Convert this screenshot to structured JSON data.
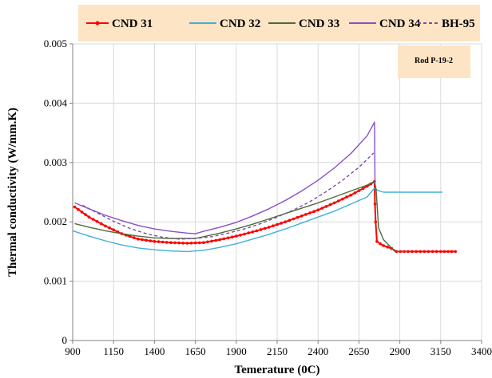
{
  "chart_data": {
    "type": "line",
    "xlabel": "Temerature (0C)",
    "ylabel": "Thermal conductivity (W/mm.K)",
    "xlim": [
      900,
      3400
    ],
    "ylim": [
      0,
      0.005
    ],
    "xticks": [
      "900",
      "1150",
      "1400",
      "1650",
      "1900",
      "2150",
      "2400",
      "2650",
      "2900",
      "3150",
      "3400"
    ],
    "yticks": [
      "0",
      "0.001",
      "0.002",
      "0.003",
      "0.004",
      "0.005"
    ],
    "grid": true,
    "legend_position": "top",
    "annotation": "Rod P-19-2",
    "colors": {
      "legend_bg": "#fce4c4",
      "annotation_bg": "#fce4c4",
      "cnd31": "#ff0000",
      "cnd32": "#3eb0dc",
      "cnd33": "#4e6b3a",
      "cnd34": "#8a4fc6",
      "bh95": "#7b4fa0",
      "grid": "#d9d9d9"
    },
    "series": [
      {
        "name": "CND 31",
        "color": "#ff0000",
        "style": "solid-markers",
        "x": [
          912,
          1000,
          1100,
          1200,
          1300,
          1400,
          1500,
          1600,
          1700,
          1800,
          1900,
          2000,
          2100,
          2200,
          2300,
          2400,
          2500,
          2600,
          2700,
          2745,
          2748,
          2752,
          2760,
          2780,
          2800,
          2850,
          2880,
          2950,
          3050,
          3150,
          3240
        ],
        "y": [
          0.00225,
          0.00208,
          0.00193,
          0.0018,
          0.00171,
          0.00167,
          0.00165,
          0.00164,
          0.00165,
          0.0017,
          0.00176,
          0.00183,
          0.00191,
          0.002,
          0.0021,
          0.0022,
          0.00232,
          0.00245,
          0.0026,
          0.00268,
          0.0023,
          0.002,
          0.00167,
          0.00163,
          0.0016,
          0.00155,
          0.0015,
          0.0015,
          0.0015,
          0.0015,
          0.0015
        ]
      },
      {
        "name": "CND 32",
        "color": "#3eb0dc",
        "style": "solid",
        "x": [
          900,
          1000,
          1100,
          1200,
          1300,
          1400,
          1500,
          1600,
          1700,
          1800,
          1900,
          2000,
          2100,
          2200,
          2300,
          2400,
          2500,
          2600,
          2700,
          2745,
          2765,
          2800,
          2900,
          3000,
          3100,
          3160
        ],
        "y": [
          0.00185,
          0.00176,
          0.00168,
          0.00161,
          0.00156,
          0.00153,
          0.00151,
          0.0015,
          0.00152,
          0.00157,
          0.00163,
          0.00171,
          0.00179,
          0.00188,
          0.00198,
          0.00208,
          0.00218,
          0.0023,
          0.00242,
          0.00257,
          0.00253,
          0.0025,
          0.0025,
          0.0025,
          0.0025,
          0.0025
        ]
      },
      {
        "name": "CND 33",
        "color": "#4e6b3a",
        "style": "solid",
        "x": [
          912,
          1000,
          1100,
          1200,
          1300,
          1400,
          1500,
          1600,
          1650,
          1700,
          1800,
          1900,
          2000,
          2100,
          2200,
          2300,
          2400,
          2500,
          2600,
          2700,
          2745,
          2755,
          2770,
          2800,
          2870,
          2950
        ],
        "y": [
          0.00197,
          0.00191,
          0.00185,
          0.0018,
          0.00176,
          0.00173,
          0.00172,
          0.00172,
          0.00172,
          0.00175,
          0.00181,
          0.00188,
          0.00196,
          0.00205,
          0.00214,
          0.00223,
          0.00232,
          0.00242,
          0.00252,
          0.00262,
          0.00268,
          0.00255,
          0.0019,
          0.0017,
          0.0015,
          0.0015
        ]
      },
      {
        "name": "CND 34",
        "color": "#8a4fc6",
        "style": "solid",
        "x": [
          912,
          1000,
          1100,
          1200,
          1300,
          1400,
          1500,
          1600,
          1650,
          1700,
          1800,
          1900,
          2000,
          2100,
          2200,
          2300,
          2400,
          2500,
          2600,
          2700,
          2745,
          2748
        ],
        "y": [
          0.00232,
          0.00222,
          0.00211,
          0.00202,
          0.00194,
          0.00188,
          0.00184,
          0.00181,
          0.0018,
          0.00184,
          0.00191,
          0.00199,
          0.0021,
          0.00222,
          0.00236,
          0.00252,
          0.0027,
          0.00291,
          0.00315,
          0.00345,
          0.00368,
          0.00265
        ]
      },
      {
        "name": "BH-95",
        "color": "#7b4fa0",
        "style": "dashed",
        "x": [
          960,
          1050,
          1150,
          1250,
          1350,
          1450,
          1550,
          1650,
          1750,
          1850,
          1950,
          2050,
          2150,
          2250,
          2350,
          2450,
          2550,
          2650,
          2740
        ],
        "y": [
          0.00228,
          0.00215,
          0.00201,
          0.00189,
          0.0018,
          0.00174,
          0.00171,
          0.00172,
          0.00175,
          0.00181,
          0.00188,
          0.00197,
          0.00208,
          0.0022,
          0.00234,
          0.00251,
          0.0027,
          0.00292,
          0.00316
        ]
      }
    ]
  }
}
